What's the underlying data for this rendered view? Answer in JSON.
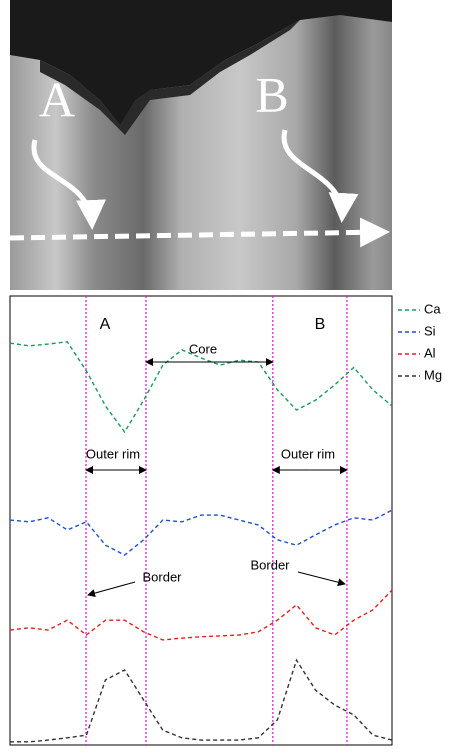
{
  "image": {
    "labels": [
      "A",
      "B"
    ]
  },
  "chart_data": {
    "type": "line",
    "x": [
      0,
      5,
      10,
      15,
      20,
      25,
      30,
      35,
      40,
      45,
      50,
      55,
      60,
      65,
      70,
      75,
      80,
      85,
      90,
      95,
      100
    ],
    "xlim": [
      0,
      100
    ],
    "ylim": [
      0,
      100
    ],
    "series": [
      {
        "name": "Ca",
        "color": "#1a9a5a",
        "values": [
          89.5,
          88.9,
          89.3,
          89.8,
          83.3,
          75.5,
          69.7,
          76.8,
          84.6,
          88.0,
          86.2,
          84.6,
          85.7,
          85.3,
          79.1,
          74.6,
          76.8,
          80.2,
          84.1,
          79.1,
          75.5
        ]
      },
      {
        "name": "Si",
        "color": "#1f4fd0",
        "values": [
          50.1,
          49.7,
          50.6,
          47.9,
          49.7,
          44.5,
          42.3,
          45.7,
          50.1,
          49.7,
          51.2,
          51.2,
          50.1,
          49.0,
          45.7,
          44.5,
          46.8,
          49.0,
          50.6,
          50.1,
          52.3
        ]
      },
      {
        "name": "Al",
        "color": "#e02020",
        "values": [
          25.6,
          26.1,
          25.6,
          27.8,
          24.5,
          27.8,
          27.8,
          25.2,
          23.4,
          23.8,
          24.1,
          24.3,
          24.5,
          25.2,
          27.8,
          31.2,
          26.1,
          24.5,
          27.8,
          30.1,
          34.5
        ]
      },
      {
        "name": "Mg",
        "color": "#333333",
        "values": [
          0.7,
          0.7,
          1.1,
          1.6,
          2.2,
          14.5,
          16.7,
          10.0,
          3.3,
          1.6,
          1.1,
          1.1,
          1.1,
          1.6,
          5.6,
          18.9,
          12.2,
          8.9,
          6.7,
          2.2,
          1.1
        ]
      }
    ],
    "vlines": [
      19.9,
      35.6,
      68.8,
      88.2
    ],
    "annotations": [
      "A",
      "B",
      "Core",
      "Outer rim",
      "Outer rim",
      "Border",
      "Border"
    ]
  }
}
